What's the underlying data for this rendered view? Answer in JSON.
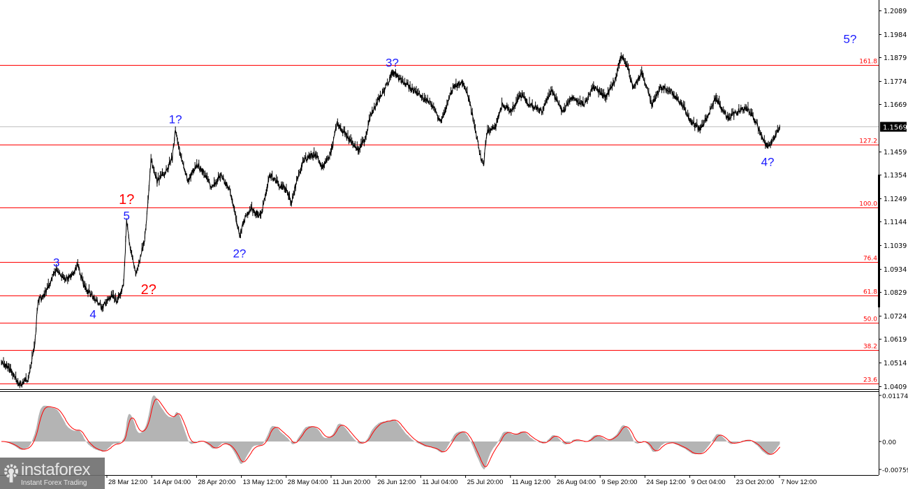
{
  "chart_data": {
    "type": "line",
    "price_axis": {
      "ticks": [
        "1.2089",
        "1.1984",
        "1.1879",
        "1.1774",
        "1.1669",
        "1.1459",
        "1.1354",
        "1.1249",
        "1.1144",
        "1.1039",
        "1.0934",
        "1.0829",
        "1.0724",
        "1.0619",
        "1.0514",
        "1.0409"
      ],
      "ylim": [
        1.039,
        1.213
      ],
      "current_price": "1.1569"
    },
    "time_axis": {
      "ticks": [
        "28 Mar 12:00",
        "14 Apr 04:00",
        "28 Apr 20:00",
        "13 May 12:00",
        "28 May 04:00",
        "11 Jun 20:00",
        "26 Jun 12:00",
        "11 Jul 04:00",
        "25 Jul 20:00",
        "11 Aug 12:00",
        "26 Aug 04:00",
        "9 Sep 20:00",
        "24 Sep 12:00",
        "9 Oct 04:00",
        "23 Oct 20:00",
        "7 Nov 12:00"
      ]
    },
    "price_series": [
      [
        "21 Feb",
        1.0511
      ],
      [
        "24 Feb",
        1.048
      ],
      [
        "27 Feb",
        1.0411
      ],
      [
        "2 Mar",
        1.0448
      ],
      [
        "4 Mar",
        1.0605
      ],
      [
        "5 Mar",
        1.0792
      ],
      [
        "7 Mar",
        1.0808
      ],
      [
        "9 Mar",
        1.087
      ],
      [
        "11 Mar",
        1.0933
      ],
      [
        "14 Mar",
        1.0886
      ],
      [
        "16 Mar",
        1.0902
      ],
      [
        "18 Mar",
        1.0948
      ],
      [
        "20 Mar",
        1.0855
      ],
      [
        "23 Mar",
        1.0808
      ],
      [
        "26 Mar",
        1.0761
      ],
      [
        "29 Mar",
        1.0808
      ],
      [
        "31 Mar",
        1.0792
      ],
      [
        "2 Apr",
        1.0855
      ],
      [
        "3 Apr",
        1.1142
      ],
      [
        "4 Apr",
        1.1042
      ],
      [
        "6 Apr",
        1.0911
      ],
      [
        "7 Apr",
        1.0948
      ],
      [
        "9 Apr",
        1.1073
      ],
      [
        "10 Apr",
        1.123
      ],
      [
        "11 Apr",
        1.1417
      ],
      [
        "13 Apr",
        1.1323
      ],
      [
        "16 Apr",
        1.137
      ],
      [
        "18 Apr",
        1.1433
      ],
      [
        "19 Apr",
        1.1558
      ],
      [
        "21 Apr",
        1.1417
      ],
      [
        "23 Apr",
        1.1323
      ],
      [
        "26 Apr",
        1.1401
      ],
      [
        "28 Apr",
        1.137
      ],
      [
        "1 May",
        1.1292
      ],
      [
        "4 May",
        1.1355
      ],
      [
        "7 May",
        1.1277
      ],
      [
        "8 May",
        1.1214
      ],
      [
        "10 May",
        1.108
      ],
      [
        "12 May",
        1.1167
      ],
      [
        "14 May",
        1.1198
      ],
      [
        "17 May",
        1.1167
      ],
      [
        "20 May",
        1.1355
      ],
      [
        "23 May",
        1.1308
      ],
      [
        "25 May",
        1.1292
      ],
      [
        "27 May",
        1.123
      ],
      [
        "29 May",
        1.1339
      ],
      [
        "31 May",
        1.1417
      ],
      [
        "4 Jun",
        1.1448
      ],
      [
        "6 Jun",
        1.1386
      ],
      [
        "9 Jun",
        1.1448
      ],
      [
        "11 Jun",
        1.1589
      ],
      [
        "13 Jun",
        1.1542
      ],
      [
        "15 Jun",
        1.1511
      ],
      [
        "18 Jun",
        1.1464
      ],
      [
        "20 Jun",
        1.1511
      ],
      [
        "22 Jun",
        1.162
      ],
      [
        "25 Jun",
        1.1698
      ],
      [
        "27 Jun",
        1.1745
      ],
      [
        "29 Jun",
        1.1814
      ],
      [
        "2 Jul",
        1.1776
      ],
      [
        "6 Jul",
        1.173
      ],
      [
        "9 Jul",
        1.1698
      ],
      [
        "12 Jul",
        1.1667
      ],
      [
        "15 Jul",
        1.1589
      ],
      [
        "17 Jul",
        1.1667
      ],
      [
        "19 Jul",
        1.1745
      ],
      [
        "22 Jul",
        1.1767
      ],
      [
        "24 Jul",
        1.1698
      ],
      [
        "26 Jul",
        1.1573
      ],
      [
        "28 Jul",
        1.1433
      ],
      [
        "29 Jul",
        1.1401
      ],
      [
        "30 Jul",
        1.1542
      ],
      [
        "2 Aug",
        1.1573
      ],
      [
        "4 Aug",
        1.1667
      ],
      [
        "7 Aug",
        1.1636
      ],
      [
        "10 Aug",
        1.1714
      ],
      [
        "13 Aug",
        1.1667
      ],
      [
        "17 Aug",
        1.1636
      ],
      [
        "20 Aug",
        1.173
      ],
      [
        "24 Aug",
        1.1636
      ],
      [
        "27 Aug",
        1.1698
      ],
      [
        "31 Aug",
        1.1667
      ],
      [
        "3 Sep",
        1.1745
      ],
      [
        "7 Sep",
        1.1698
      ],
      [
        "10 Sep",
        1.1776
      ],
      [
        "12 Sep",
        1.1886
      ],
      [
        "14 Sep",
        1.1839
      ],
      [
        "16 Sep",
        1.1745
      ],
      [
        "19 Sep",
        1.1808
      ],
      [
        "22 Sep",
        1.1667
      ],
      [
        "25 Sep",
        1.1745
      ],
      [
        "28 Sep",
        1.173
      ],
      [
        "2 Oct",
        1.1667
      ],
      [
        "5 Oct",
        1.1589
      ],
      [
        "8 Oct",
        1.1558
      ],
      [
        "10 Oct",
        1.1605
      ],
      [
        "13 Oct",
        1.1698
      ],
      [
        "17 Oct",
        1.1605
      ],
      [
        "20 Oct",
        1.1636
      ],
      [
        "23 Oct",
        1.1652
      ],
      [
        "25 Oct",
        1.162
      ],
      [
        "28 Oct",
        1.1527
      ],
      [
        "30 Oct",
        1.148
      ],
      [
        "1 Nov",
        1.1511
      ],
      [
        "3 Nov",
        1.1569
      ]
    ],
    "fibonacci_levels": [
      {
        "label": "161.8",
        "price": 1.1845
      },
      {
        "label": "127.2",
        "price": 1.1489
      },
      {
        "label": "100.0",
        "price": 1.1208
      },
      {
        "label": "76.4",
        "price": 1.0964
      },
      {
        "label": "61.8",
        "price": 1.0814
      },
      {
        "label": "50.0",
        "price": 1.0692
      },
      {
        "label": "38.2",
        "price": 1.057
      },
      {
        "label": "23.6",
        "price": 1.042
      }
    ],
    "wave_labels": [
      {
        "text": "3",
        "date": "11 Mar",
        "price": 1.096,
        "color": "blue"
      },
      {
        "text": "4",
        "date": "23 Mar",
        "price": 1.073,
        "color": "blue"
      },
      {
        "text": "5",
        "date": "3 Apr",
        "price": 1.117,
        "color": "blue"
      },
      {
        "text": "1?",
        "date": "3 Apr",
        "price": 1.121,
        "color": "red"
      },
      {
        "text": "2?",
        "date": "7 Apr",
        "price": 1.084,
        "color": "red"
      },
      {
        "text": "1?",
        "date": "19 Apr",
        "price": 1.16,
        "color": "blue"
      },
      {
        "text": "2?",
        "date": "10 May",
        "price": 1.1,
        "color": "blue"
      },
      {
        "text": "3?",
        "date": "29 Jun",
        "price": 1.1855,
        "color": "blue"
      },
      {
        "text": "4?",
        "date": "30 Oct",
        "price": 1.141,
        "color": "blue"
      },
      {
        "text": "5?",
        "date": "",
        "price": 1.196,
        "color": "blue"
      }
    ],
    "oscillator": {
      "ticks": [
        "0.01174",
        "0.00",
        "-0.00759"
      ],
      "ylim": [
        -0.00759,
        0.01174
      ],
      "histogram_color": "#b4b4b4",
      "signal_color": "#ff0000"
    },
    "colors": {
      "price": "#000000",
      "fib_line": "#ff0000",
      "current_price_line": "#c0c0c0",
      "wave_blue": "#1a1aff",
      "wave_red": "#ff0000"
    }
  },
  "logo": {
    "brand": "instaforex",
    "tagline": "Instant Forex Trading"
  }
}
